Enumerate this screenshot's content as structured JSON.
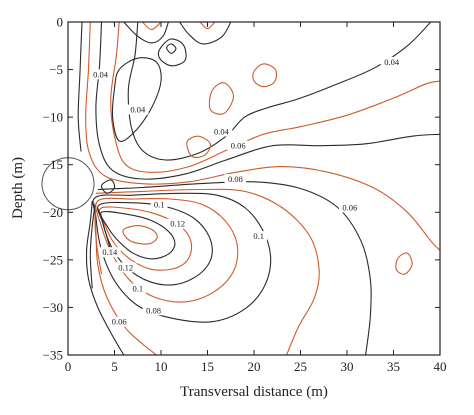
{
  "chart_data": {
    "type": "contour",
    "xlabel": "Transversal distance (m)",
    "ylabel": "Depth (m)",
    "xlim": [
      0,
      40
    ],
    "ylim": [
      -35,
      0
    ],
    "xticks": [
      "0",
      "5",
      "10",
      "15",
      "20",
      "25",
      "30",
      "35",
      "40"
    ],
    "yticks": [
      "0",
      "−5",
      "−10",
      "−15",
      "−20",
      "−25",
      "−30",
      "−35"
    ],
    "colors": {
      "black_contours": "#2a2a2a",
      "orange_contours": "#d05a2a"
    },
    "tunnel": {
      "cx": 0,
      "cy": -17,
      "r": 2.8
    },
    "contour_labels": [
      {
        "text": "0.04",
        "x": 3.5,
        "y": -5.5
      },
      {
        "text": "0.04",
        "x": 7.5,
        "y": -9.2
      },
      {
        "text": "0.04",
        "x": 16.5,
        "y": -11.5
      },
      {
        "text": "0.04",
        "x": 34.8,
        "y": -4.2
      },
      {
        "text": "0.06",
        "x": 18.3,
        "y": -13.0
      },
      {
        "text": "0.08",
        "x": 18.0,
        "y": -16.5
      },
      {
        "text": "0.06",
        "x": 30.3,
        "y": -19.5
      },
      {
        "text": "0.1",
        "x": 9.8,
        "y": -19.2
      },
      {
        "text": "0.12",
        "x": 11.8,
        "y": -21.2
      },
      {
        "text": "0.1",
        "x": 20.5,
        "y": -22.5
      },
      {
        "text": "0.14",
        "x": 4.5,
        "y": -24.2
      },
      {
        "text": "0.12",
        "x": 6.2,
        "y": -25.8
      },
      {
        "text": "0.1",
        "x": 7.5,
        "y": -28.0
      },
      {
        "text": "0.08",
        "x": 9.2,
        "y": -30.3
      },
      {
        "text": "0.06",
        "x": 5.5,
        "y": -31.5
      }
    ],
    "contours": [
      {
        "level": "0.02",
        "color": "black",
        "pts": [
          [
            7.5,
            0
          ],
          [
            7.2,
            -3.5
          ],
          [
            6.5,
            -7
          ],
          [
            6.8,
            -11
          ],
          [
            8,
            -13.5
          ],
          [
            10.5,
            -14.5
          ],
          [
            14,
            -13.8
          ],
          [
            17,
            -12
          ],
          [
            19,
            -10
          ],
          [
            21.5,
            -9
          ],
          [
            25,
            -8
          ],
          [
            29,
            -6.5
          ],
          [
            33,
            -4.8
          ],
          [
            36.5,
            -2.5
          ],
          [
            39,
            0
          ]
        ]
      },
      {
        "level": "0.03",
        "color": "orange",
        "pts": [
          [
            5.5,
            0
          ],
          [
            5.2,
            -3.5
          ],
          [
            4.6,
            -8
          ],
          [
            5,
            -12
          ],
          [
            6.2,
            -15
          ],
          [
            9,
            -15.8
          ],
          [
            13,
            -15.2
          ],
          [
            17,
            -13.5
          ],
          [
            21,
            -11.8
          ],
          [
            25,
            -11
          ],
          [
            30,
            -9.8
          ],
          [
            35,
            -8
          ],
          [
            38.5,
            -6.5
          ],
          [
            40,
            -6.2
          ]
        ]
      },
      {
        "level": "0.04",
        "color": "black",
        "pts": [
          [
            3.6,
            0
          ],
          [
            3.4,
            -4.5
          ],
          [
            3,
            -9
          ],
          [
            3.4,
            -13
          ],
          [
            4.8,
            -15.6
          ],
          [
            8,
            -16.5
          ],
          [
            12.5,
            -16
          ],
          [
            17,
            -14.5
          ],
          [
            22,
            -13
          ],
          [
            27,
            -13
          ],
          [
            32,
            -12.8
          ],
          [
            37,
            -12
          ],
          [
            40,
            -11.8
          ]
        ]
      },
      {
        "level": "0.05",
        "color": "orange",
        "pts": [
          [
            2.4,
            0
          ],
          [
            2.2,
            -5
          ],
          [
            1.9,
            -10
          ],
          [
            2.3,
            -13.8
          ],
          [
            4,
            -16.2
          ],
          [
            8,
            -17
          ],
          [
            13,
            -16.8
          ],
          [
            18,
            -15.8
          ],
          [
            23,
            -15.2
          ],
          [
            28,
            -15.8
          ],
          [
            33,
            -17.5
          ],
          [
            36.5,
            -20
          ],
          [
            39,
            -23
          ],
          [
            40,
            -24
          ]
        ]
      },
      {
        "level": "0.06",
        "color": "black",
        "pts": [
          [
            1.5,
            0
          ],
          [
            1.3,
            -5
          ],
          [
            1.1,
            -10
          ],
          [
            1.4,
            -13.6
          ]
        ]
      },
      {
        "level": "0.06",
        "color": "black",
        "pts": [
          [
            3.2,
            -17.6
          ],
          [
            8,
            -17.4
          ],
          [
            14,
            -17
          ],
          [
            20,
            -16.8
          ],
          [
            25,
            -17.5
          ],
          [
            29,
            -19.5
          ],
          [
            31.5,
            -23
          ],
          [
            32.5,
            -27
          ],
          [
            32.5,
            -31
          ],
          [
            32,
            -35
          ]
        ]
      },
      {
        "level": "0.06",
        "color": "black",
        "pts": [
          [
            2.6,
            -18.8
          ],
          [
            2.4,
            -21
          ],
          [
            2,
            -24
          ],
          [
            2.2,
            -27
          ],
          [
            3.2,
            -30
          ],
          [
            4.8,
            -33
          ],
          [
            6,
            -35
          ]
        ]
      },
      {
        "level": "0.07",
        "color": "orange",
        "pts": [
          [
            3,
            -18
          ],
          [
            8,
            -17.8
          ],
          [
            14,
            -17.6
          ],
          [
            19,
            -17.8
          ],
          [
            23,
            -19.5
          ],
          [
            26,
            -22.5
          ],
          [
            27,
            -26
          ],
          [
            26.5,
            -29
          ],
          [
            24.8,
            -32
          ],
          [
            23.5,
            -35
          ]
        ]
      },
      {
        "level": "0.07",
        "color": "orange",
        "pts": [
          [
            2.8,
            -19
          ],
          [
            3,
            -22
          ],
          [
            3.2,
            -25.5
          ],
          [
            4.2,
            -29
          ],
          [
            6.3,
            -32.3
          ],
          [
            9.5,
            -35
          ]
        ]
      },
      {
        "level": "0.08",
        "color": "black",
        "pts": [
          [
            3,
            -18.4
          ],
          [
            7,
            -18.2
          ],
          [
            12,
            -18
          ],
          [
            16,
            -18.2
          ],
          [
            19,
            -19.5
          ],
          [
            21,
            -22
          ],
          [
            21.8,
            -25
          ],
          [
            21,
            -28
          ],
          [
            18.8,
            -30.3
          ],
          [
            15.5,
            -31.5
          ],
          [
            11.5,
            -31.2
          ],
          [
            7.8,
            -30
          ],
          [
            5.2,
            -27.5
          ],
          [
            3.6,
            -24
          ],
          [
            3,
            -20.5
          ],
          [
            3,
            -18.4
          ]
        ]
      },
      {
        "level": "0.09",
        "color": "orange",
        "pts": [
          [
            3.2,
            -18.8
          ],
          [
            7,
            -18.6
          ],
          [
            11,
            -18.6
          ],
          [
            14.5,
            -19.2
          ],
          [
            17,
            -21
          ],
          [
            18.2,
            -23.5
          ],
          [
            17.8,
            -26.2
          ],
          [
            15.8,
            -28.3
          ],
          [
            12.8,
            -29.4
          ],
          [
            9.5,
            -29
          ],
          [
            6.8,
            -27.3
          ],
          [
            4.8,
            -24.5
          ],
          [
            3.6,
            -21.5
          ],
          [
            3.2,
            -18.8
          ]
        ]
      },
      {
        "level": "0.1",
        "color": "black",
        "pts": [
          [
            3.4,
            -19.2
          ],
          [
            7,
            -19
          ],
          [
            10.5,
            -19.4
          ],
          [
            13.5,
            -20.6
          ],
          [
            15.2,
            -22.6
          ],
          [
            15.4,
            -24.8
          ],
          [
            14,
            -26.6
          ],
          [
            11.5,
            -27.6
          ],
          [
            8.8,
            -27.3
          ],
          [
            6.3,
            -25.8
          ],
          [
            4.6,
            -23.5
          ],
          [
            3.7,
            -21
          ],
          [
            3.4,
            -19.2
          ]
        ]
      },
      {
        "level": "0.11",
        "color": "orange",
        "pts": [
          [
            3.5,
            -19.6
          ],
          [
            6.5,
            -19.6
          ],
          [
            9.5,
            -20.2
          ],
          [
            12,
            -21.4
          ],
          [
            13.2,
            -23
          ],
          [
            13,
            -24.8
          ],
          [
            11.5,
            -25.9
          ],
          [
            9,
            -26
          ],
          [
            6.8,
            -25
          ],
          [
            5,
            -23.3
          ],
          [
            4,
            -21.4
          ],
          [
            3.5,
            -19.6
          ]
        ]
      },
      {
        "level": "0.12",
        "color": "black",
        "pts": [
          [
            3.6,
            -20
          ],
          [
            6.3,
            -20.2
          ],
          [
            8.8,
            -20.8
          ],
          [
            10.8,
            -22
          ],
          [
            11.5,
            -23.3
          ],
          [
            10.8,
            -24.4
          ],
          [
            9,
            -24.9
          ],
          [
            7,
            -24.3
          ],
          [
            5.4,
            -23
          ],
          [
            4.3,
            -21.6
          ],
          [
            3.6,
            -20
          ]
        ]
      },
      {
        "level": "0.13",
        "color": "orange",
        "pts": [
          [
            6,
            -21.8
          ],
          [
            7.5,
            -21.4
          ],
          [
            9,
            -21.8
          ],
          [
            9.6,
            -22.6
          ],
          [
            8.8,
            -23.3
          ],
          [
            7.2,
            -23.2
          ],
          [
            6.2,
            -22.6
          ],
          [
            6,
            -21.8
          ]
        ]
      },
      {
        "level": "0.14",
        "color": "black",
        "pts": [
          [
            3.2,
            -19.6
          ],
          [
            3.6,
            -20.6
          ],
          [
            4,
            -22
          ],
          [
            4.6,
            -24
          ]
        ]
      },
      {
        "level": "inner",
        "color": "orange",
        "pts": [
          [
            3,
            -19.4
          ],
          [
            2.9,
            -21
          ],
          [
            3.1,
            -23.5
          ],
          [
            3.6,
            -26.5
          ]
        ]
      },
      {
        "level": "inner",
        "color": "black",
        "pts": [
          [
            2.9,
            -19.2
          ],
          [
            2.6,
            -21.5
          ],
          [
            2.4,
            -24.5
          ],
          [
            2.6,
            -28
          ]
        ]
      },
      {
        "level": "top",
        "color": "black",
        "pts": [
          [
            6,
            0
          ],
          [
            7.5,
            -1.5
          ],
          [
            9,
            -2.2
          ],
          [
            10.2,
            -1.5
          ],
          [
            10.8,
            0
          ]
        ]
      },
      {
        "level": "top",
        "color": "orange",
        "pts": [
          [
            8,
            0
          ],
          [
            9,
            -0.8
          ],
          [
            10,
            0
          ]
        ]
      },
      {
        "level": "top",
        "color": "black",
        "pts": [
          [
            12,
            0
          ],
          [
            13,
            -1.3
          ],
          [
            14.5,
            -2.3
          ],
          [
            16.5,
            -1.6
          ],
          [
            17.5,
            0
          ]
        ]
      },
      {
        "level": "top",
        "color": "orange",
        "pts": [
          [
            14.2,
            0
          ],
          [
            15,
            -0.7
          ],
          [
            15.8,
            0
          ]
        ]
      },
      {
        "level": "loop",
        "color": "black",
        "pts": [
          [
            5.5,
            -5
          ],
          [
            7.5,
            -3.8
          ],
          [
            9.5,
            -4.2
          ],
          [
            10,
            -6.2
          ],
          [
            9,
            -9
          ],
          [
            7.2,
            -11.5
          ],
          [
            5.5,
            -12.5
          ],
          [
            4.8,
            -10
          ],
          [
            5,
            -7
          ],
          [
            5.5,
            -5
          ]
        ]
      },
      {
        "level": "loop",
        "color": "black",
        "pts": [
          [
            9.8,
            -3
          ],
          [
            11,
            -1.8
          ],
          [
            12.4,
            -2.4
          ],
          [
            12.6,
            -4
          ],
          [
            11.2,
            -4.6
          ],
          [
            10,
            -4
          ],
          [
            9.8,
            -3
          ]
        ]
      },
      {
        "level": "loop",
        "color": "black",
        "pts": [
          [
            10.6,
            -2.7
          ],
          [
            11.1,
            -2.3
          ],
          [
            11.6,
            -2.8
          ],
          [
            11.1,
            -3.3
          ],
          [
            10.6,
            -2.7
          ]
        ]
      },
      {
        "level": "loop",
        "color": "orange",
        "pts": [
          [
            15.5,
            -7.2
          ],
          [
            16.8,
            -6.4
          ],
          [
            17.8,
            -7.8
          ],
          [
            16.8,
            -9.6
          ],
          [
            15.3,
            -9.2
          ],
          [
            15.5,
            -7.2
          ]
        ]
      },
      {
        "level": "loop",
        "color": "orange",
        "pts": [
          [
            20,
            -5.2
          ],
          [
            21,
            -4.4
          ],
          [
            22.3,
            -5
          ],
          [
            22.2,
            -6.3
          ],
          [
            21,
            -6.8
          ],
          [
            20,
            -6.2
          ],
          [
            20,
            -5.2
          ]
        ]
      },
      {
        "level": "loop",
        "color": "orange",
        "pts": [
          [
            12.8,
            -12.6
          ],
          [
            14,
            -12
          ],
          [
            15.3,
            -12.8
          ],
          [
            14.7,
            -14
          ],
          [
            13.3,
            -14.1
          ],
          [
            12.8,
            -12.6
          ]
        ]
      },
      {
        "level": "loop",
        "color": "orange",
        "pts": [
          [
            35.5,
            -24.8
          ],
          [
            36.5,
            -24.3
          ],
          [
            37,
            -25.5
          ],
          [
            36.2,
            -26.5
          ],
          [
            35.3,
            -26
          ],
          [
            35.5,
            -24.8
          ]
        ]
      },
      {
        "level": "loop",
        "color": "black",
        "pts": [
          [
            3.6,
            -17.2
          ],
          [
            4.6,
            -16.6
          ],
          [
            5,
            -17.4
          ],
          [
            4.2,
            -18
          ],
          [
            3.6,
            -17.2
          ]
        ]
      }
    ]
  }
}
